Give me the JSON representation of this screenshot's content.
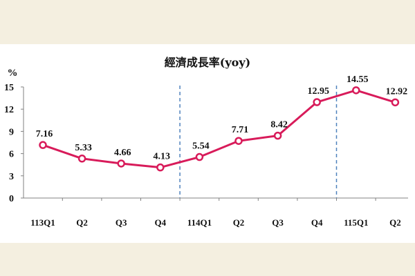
{
  "chart_data": {
    "type": "line",
    "title": "經濟成長率(yoy)",
    "ylabel": "%",
    "xlabel": "",
    "ylim": [
      0,
      15
    ],
    "yticks": [
      0,
      3,
      6,
      9,
      12,
      15
    ],
    "grid": false,
    "categories": [
      "113Q1",
      "Q2",
      "Q3",
      "Q4",
      "114Q1",
      "Q2",
      "Q3",
      "Q4",
      "115Q1",
      "Q2"
    ],
    "series": [
      {
        "values": [
          7.16,
          5.33,
          4.66,
          4.13,
          5.54,
          7.71,
          8.42,
          12.95,
          14.55,
          12.92
        ],
        "labels": [
          "7.16",
          "5.33",
          "4.66",
          "4.13",
          "5.54",
          "7.71",
          "8.42",
          "12.95",
          "14.55",
          "12.92"
        ]
      }
    ],
    "year_dividers_after_category": [
      3,
      7
    ],
    "colors": {
      "line": "#d81b5a",
      "marker_fill": "#ffffff",
      "divider": "#4f81bd",
      "axis": "#808080"
    }
  }
}
